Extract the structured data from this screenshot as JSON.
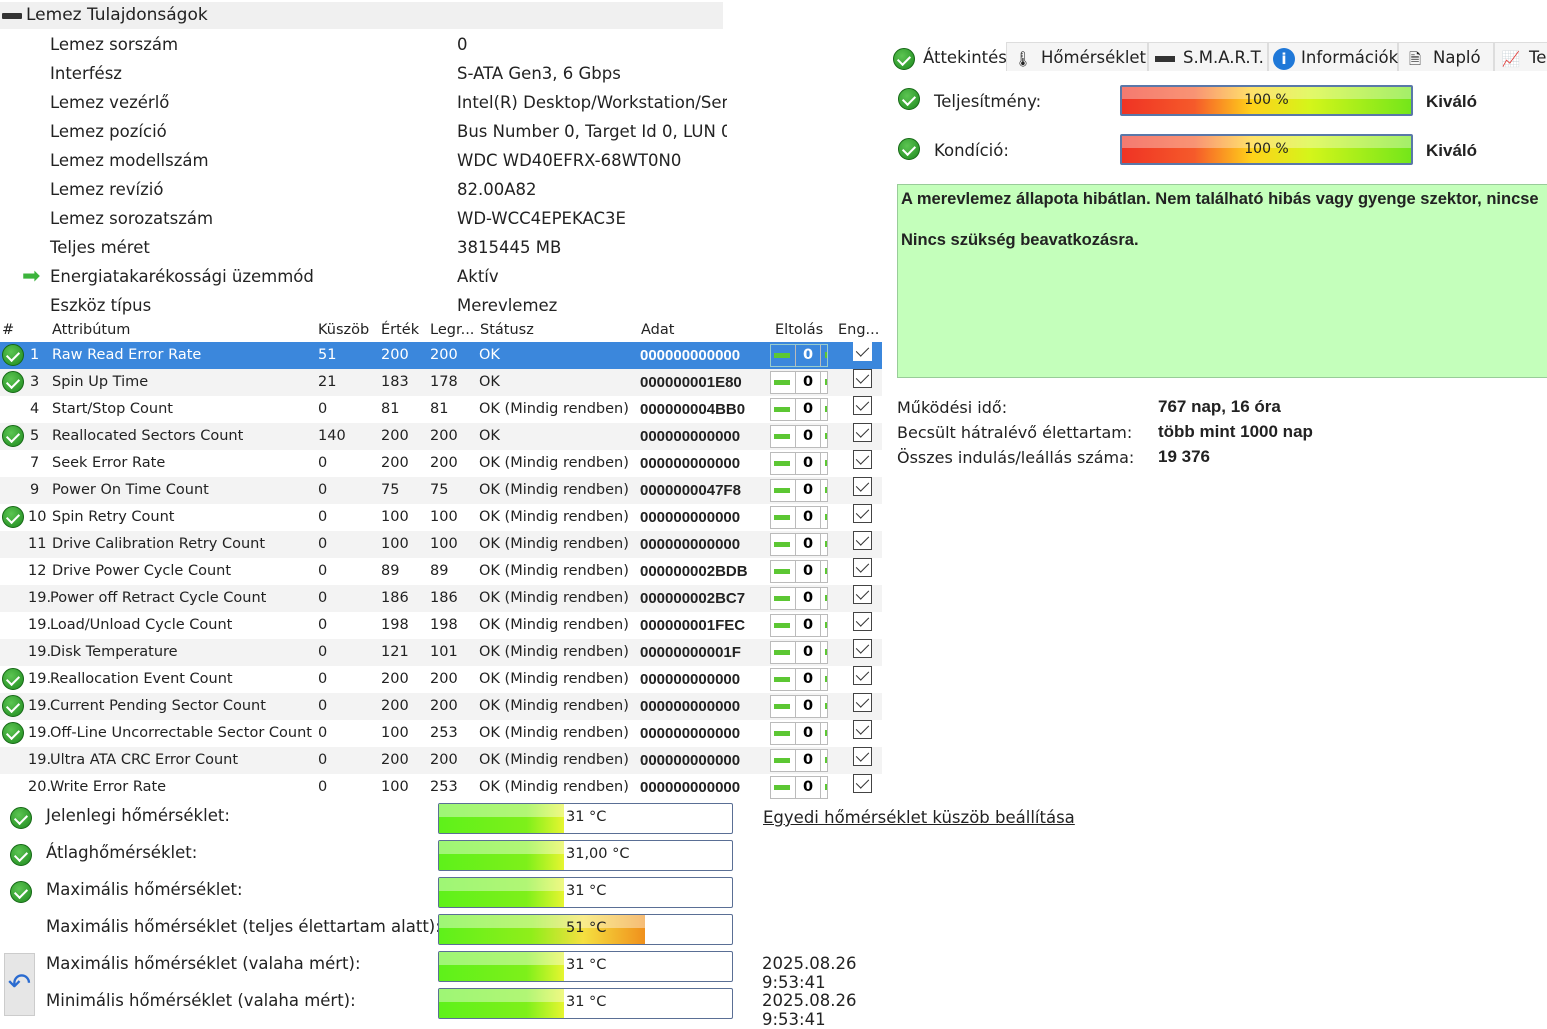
{
  "properties": {
    "title": "Lemez Tulajdonságok",
    "rows": [
      {
        "label": "Lemez sorszám",
        "value": "0"
      },
      {
        "label": "Interfész",
        "value": "S-ATA Gen3, 6 Gbps"
      },
      {
        "label": "Lemez vezérlő",
        "value": "Intel(R) Desktop/Workstation/Sen"
      },
      {
        "label": "Lemez pozíció",
        "value": "Bus Number 0, Target Id 0, LUN 0"
      },
      {
        "label": "Lemez modellszám",
        "value": "WDC WD40EFRX-68WT0N0"
      },
      {
        "label": "Lemez revízió",
        "value": "82.00A82"
      },
      {
        "label": "Lemez sorozatszám",
        "value": "WD-WCC4EPEKAC3E"
      },
      {
        "label": "Teljes méret",
        "value": "3815445 MB"
      },
      {
        "label": "Energiatakarékossági üzemmód",
        "value": "Aktív",
        "icon": "green-arrow-icon"
      },
      {
        "label": "Eszköz típus",
        "value": "Merevlemez"
      }
    ]
  },
  "smart": {
    "headers": [
      "#",
      "Attribútum",
      "Küszöb",
      "Érték",
      "Legr...",
      "Státusz",
      "Adat",
      "Eltolás",
      "Eng..."
    ],
    "rows": [
      {
        "id": "1",
        "name": "Raw Read Error Rate",
        "thr": "51",
        "val": "200",
        "worst": "200",
        "status": "OK",
        "data": "000000000000",
        "off": "0",
        "ok": true,
        "sel": true
      },
      {
        "id": "3",
        "name": "Spin Up Time",
        "thr": "21",
        "val": "183",
        "worst": "178",
        "status": "OK",
        "data": "000000001E80",
        "off": "0",
        "ok": true
      },
      {
        "id": "4",
        "name": "Start/Stop Count",
        "thr": "0",
        "val": "81",
        "worst": "81",
        "status": "OK (Mindig rendben)",
        "data": "000000004BB0",
        "off": "0"
      },
      {
        "id": "5",
        "name": "Reallocated Sectors Count",
        "thr": "140",
        "val": "200",
        "worst": "200",
        "status": "OK",
        "data": "000000000000",
        "off": "0",
        "ok": true
      },
      {
        "id": "7",
        "name": "Seek Error Rate",
        "thr": "0",
        "val": "200",
        "worst": "200",
        "status": "OK (Mindig rendben)",
        "data": "000000000000",
        "off": "0"
      },
      {
        "id": "9",
        "name": "Power On Time Count",
        "thr": "0",
        "val": "75",
        "worst": "75",
        "status": "OK (Mindig rendben)",
        "data": "0000000047F8",
        "off": "0"
      },
      {
        "id": "10",
        "name": "Spin Retry Count",
        "thr": "0",
        "val": "100",
        "worst": "100",
        "status": "OK (Mindig rendben)",
        "data": "000000000000",
        "off": "0",
        "ok": true
      },
      {
        "id": "11",
        "name": "Drive Calibration Retry Count",
        "thr": "0",
        "val": "100",
        "worst": "100",
        "status": "OK (Mindig rendben)",
        "data": "000000000000",
        "off": "0"
      },
      {
        "id": "12",
        "name": "Drive Power Cycle Count",
        "thr": "0",
        "val": "89",
        "worst": "89",
        "status": "OK (Mindig rendben)",
        "data": "000000002BDB",
        "off": "0"
      },
      {
        "id": "19.",
        "name": "Power off Retract Cycle Count",
        "thr": "0",
        "val": "186",
        "worst": "186",
        "status": "OK (Mindig rendben)",
        "data": "000000002BC7",
        "off": "0"
      },
      {
        "id": "19.",
        "name": "Load/Unload Cycle Count",
        "thr": "0",
        "val": "198",
        "worst": "198",
        "status": "OK (Mindig rendben)",
        "data": "000000001FEC",
        "off": "0"
      },
      {
        "id": "19.",
        "name": "Disk Temperature",
        "thr": "0",
        "val": "121",
        "worst": "101",
        "status": "OK (Mindig rendben)",
        "data": "00000000001F",
        "off": "0"
      },
      {
        "id": "19.",
        "name": "Reallocation Event Count",
        "thr": "0",
        "val": "200",
        "worst": "200",
        "status": "OK (Mindig rendben)",
        "data": "000000000000",
        "off": "0",
        "ok": true
      },
      {
        "id": "19.",
        "name": "Current Pending Sector Count",
        "thr": "0",
        "val": "200",
        "worst": "200",
        "status": "OK (Mindig rendben)",
        "data": "000000000000",
        "off": "0",
        "ok": true
      },
      {
        "id": "19.",
        "name": "Off-Line Uncorrectable Sector Count",
        "thr": "0",
        "val": "100",
        "worst": "253",
        "status": "OK (Mindig rendben)",
        "data": "000000000000",
        "off": "0",
        "ok": true
      },
      {
        "id": "19.",
        "name": "Ultra ATA CRC Error Count",
        "thr": "0",
        "val": "200",
        "worst": "200",
        "status": "OK (Mindig rendben)",
        "data": "000000000000",
        "off": "0"
      },
      {
        "id": "20.",
        "name": "Write Error Rate",
        "thr": "0",
        "val": "100",
        "worst": "253",
        "status": "OK (Mindig rendben)",
        "data": "000000000000",
        "off": "0"
      }
    ]
  },
  "temps": {
    "rows": [
      {
        "label": "Jelenlegi hőmérséklet:",
        "value": "31 °C",
        "level": 31,
        "ok": true
      },
      {
        "label": "Átlaghőmérséklet:",
        "value": "31,00 °C",
        "level": 31,
        "ok": true
      },
      {
        "label": "Maximális hőmérséklet:",
        "value": "31 °C",
        "level": 31,
        "ok": true
      },
      {
        "label": "Maximális hőmérséklet (teljes élettartam alatt):",
        "value": "51 °C",
        "level": 51
      },
      {
        "label": "Maximális hőmérséklet (valaha mért):",
        "value": "31 °C",
        "level": 31,
        "date": "2025.08.26 9:53:41"
      },
      {
        "label": "Minimális hőmérséklet (valaha mért):",
        "value": "31 °C",
        "level": 31,
        "date": "2025.08.26 9:53:41"
      }
    ],
    "link": "Egyedi hőmérséklet küszöb beállítása"
  },
  "tabs": [
    {
      "label": "Áttekintés",
      "icon": "check-icon",
      "active": true
    },
    {
      "label": "Hőmérséklet",
      "icon": "thermometer-icon"
    },
    {
      "label": "S.M.A.R.T.",
      "icon": "drive-icon"
    },
    {
      "label": "Információk",
      "icon": "info-icon"
    },
    {
      "label": "Napló",
      "icon": "document-icon"
    },
    {
      "label": "Te",
      "icon": "chart-icon"
    }
  ],
  "overview": {
    "performance": {
      "label": "Teljesítmény:",
      "value": "100 %",
      "percent": 100,
      "rating": "Kiváló"
    },
    "health": {
      "label": "Kondíció:",
      "value": "100 %",
      "percent": 100,
      "rating": "Kiváló"
    },
    "message": [
      "A merevlemez állapota hibátlan. Nem található hibás vagy gyenge szektor, nincse",
      "Nincs szükség beavatkozásra."
    ],
    "info": [
      {
        "label": "Működési idő:",
        "value": "767 nap, 16 óra"
      },
      {
        "label": "Becsült hátralévő élettartam:",
        "value": "több mint 1000 nap"
      },
      {
        "label": "Összes indulás/leállás száma:",
        "value": "19 376"
      }
    ]
  },
  "colors": {
    "selected_row": "#3b87dc",
    "ok_green": "#2a9a2a",
    "message_bg": "#c4ffbb"
  }
}
